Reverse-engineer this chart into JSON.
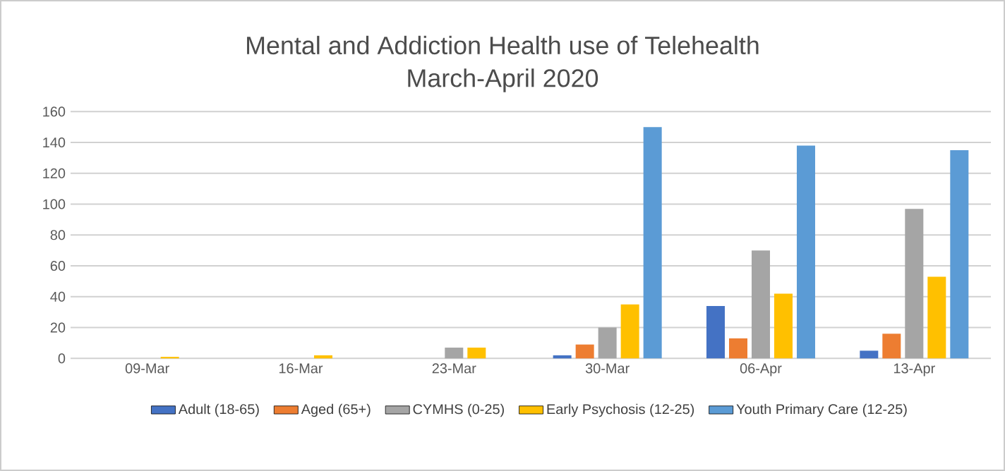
{
  "chart_data": {
    "type": "bar",
    "title": "Mental and Addiction Health use of Telehealth",
    "subtitle": "March-April 2020",
    "categories": [
      "09-Mar",
      "16-Mar",
      "23-Mar",
      "30-Mar",
      "06-Apr",
      "13-Apr"
    ],
    "series": [
      {
        "name": "Adult (18-65)",
        "color": "#4472c4",
        "values": [
          0,
          0,
          0,
          2,
          34,
          5
        ]
      },
      {
        "name": "Aged (65+)",
        "color": "#ed7d31",
        "values": [
          0,
          0,
          0,
          9,
          13,
          16
        ]
      },
      {
        "name": "CYMHS (0-25)",
        "color": "#a5a5a5",
        "values": [
          0,
          0,
          7,
          20,
          70,
          97
        ]
      },
      {
        "name": "Early Psychosis (12-25)",
        "color": "#ffc000",
        "values": [
          1,
          2,
          7,
          35,
          42,
          53
        ]
      },
      {
        "name": "Youth Primary Care (12-25)",
        "color": "#5b9bd5",
        "values": [
          0,
          0,
          0,
          150,
          138,
          135
        ]
      }
    ],
    "ylim": [
      0,
      160
    ],
    "yticks": [
      0,
      20,
      40,
      60,
      80,
      100,
      120,
      140,
      160
    ],
    "grid": "y",
    "legend": "bottom"
  }
}
